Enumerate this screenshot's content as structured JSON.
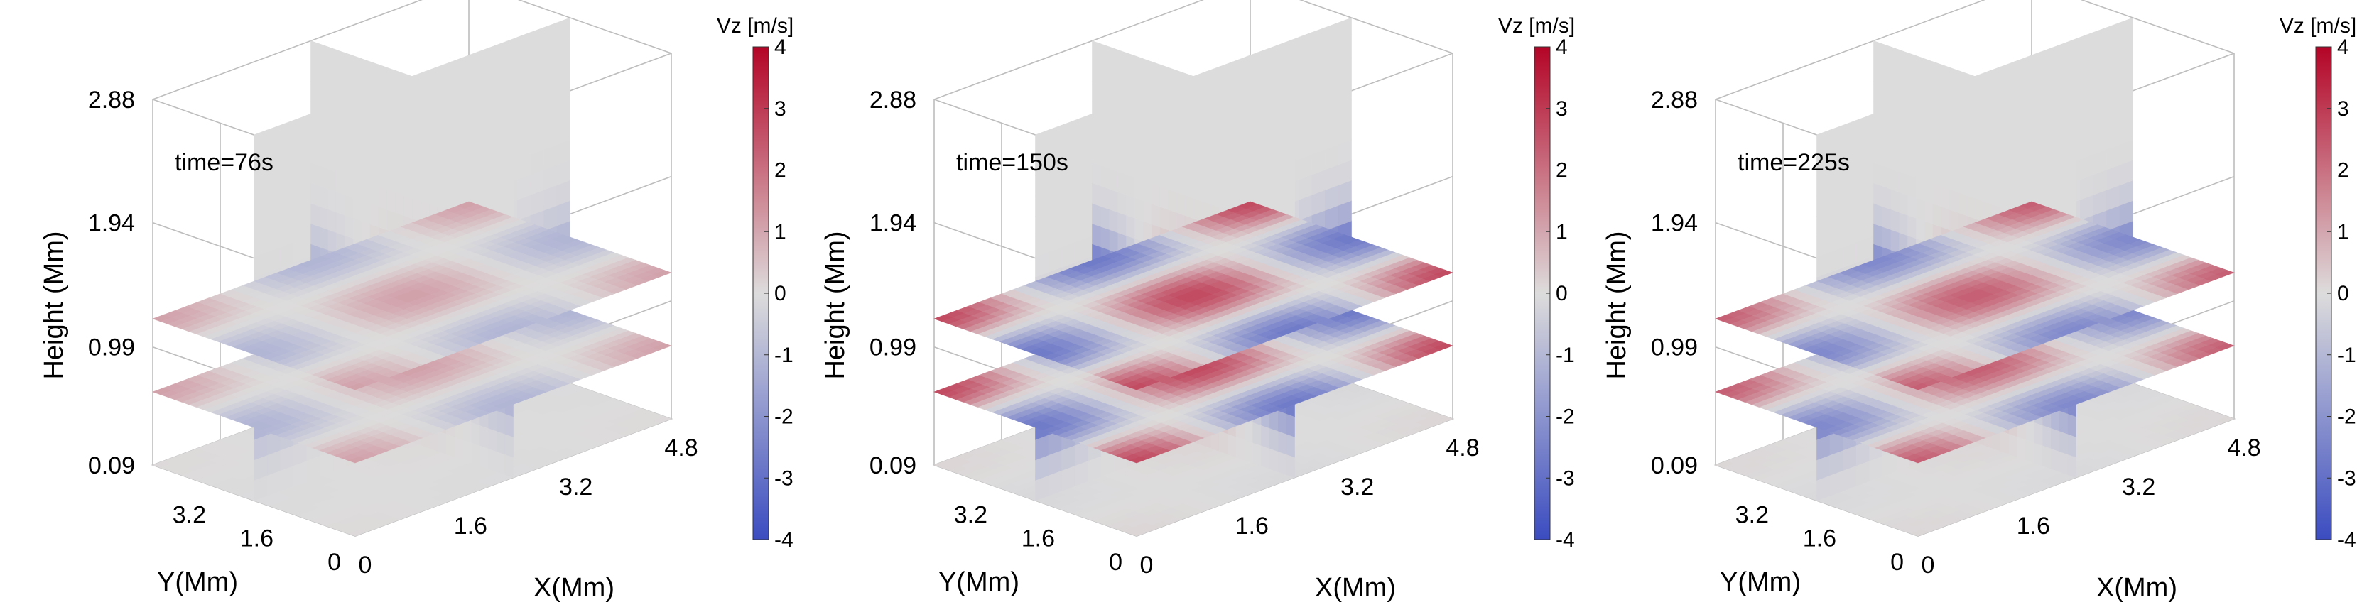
{
  "chart_data": [
    {
      "type": "heatmap",
      "annotation": "time=76s",
      "amplitude": 0.4,
      "xlabel": "X(Mm)",
      "ylabel": "Y(Mm)",
      "zlabel": "Height (Mm)",
      "x_ticks": [
        "0",
        "1.6",
        "3.2",
        "4.8"
      ],
      "y_ticks": [
        "0",
        "1.6",
        "3.2"
      ],
      "z_ticks": [
        "0.09",
        "0.99",
        "1.94",
        "2.88"
      ],
      "xlim": [
        0,
        4.8
      ],
      "ylim": [
        0,
        4.8
      ],
      "zlim": [
        0.09,
        2.88
      ],
      "colorbar": {
        "title": "Vz [m/s]",
        "ticks": [
          "4",
          "3",
          "2",
          "1",
          "0",
          "-1",
          "-2",
          "-3",
          "-4"
        ],
        "clim": [
          -4,
          4
        ],
        "colormap": "coolwarm"
      }
    },
    {
      "type": "heatmap",
      "annotation": "time=150s",
      "amplitude": 1.0,
      "xlabel": "X(Mm)",
      "ylabel": "Y(Mm)",
      "zlabel": "Height (Mm)",
      "x_ticks": [
        "0",
        "1.6",
        "3.2",
        "4.8"
      ],
      "y_ticks": [
        "0",
        "1.6",
        "3.2"
      ],
      "z_ticks": [
        "0.09",
        "0.99",
        "1.94",
        "2.88"
      ],
      "xlim": [
        0,
        4.8
      ],
      "ylim": [
        0,
        4.8
      ],
      "zlim": [
        0.09,
        2.88
      ],
      "colorbar": {
        "title": "Vz [m/s]",
        "ticks": [
          "4",
          "3",
          "2",
          "1",
          "0",
          "-1",
          "-2",
          "-3",
          "-4"
        ],
        "clim": [
          -4,
          4
        ],
        "colormap": "coolwarm"
      }
    },
    {
      "type": "heatmap",
      "annotation": "time=225s",
      "amplitude": 0.85,
      "xlabel": "X(Mm)",
      "ylabel": "Y(Mm)",
      "zlabel": "Height (Mm)",
      "x_ticks": [
        "0",
        "1.6",
        "3.2",
        "4.8"
      ],
      "y_ticks": [
        "0",
        "1.6",
        "3.2"
      ],
      "z_ticks": [
        "0.09",
        "0.99",
        "1.94",
        "2.88"
      ],
      "xlim": [
        0,
        4.8
      ],
      "ylim": [
        0,
        4.8
      ],
      "zlim": [
        0.09,
        2.88
      ],
      "colorbar": {
        "title": "Vz [m/s]",
        "ticks": [
          "4",
          "3",
          "2",
          "1",
          "0",
          "-1",
          "-2",
          "-3",
          "-4"
        ],
        "clim": [
          -4,
          4
        ],
        "colormap": "coolwarm"
      }
    }
  ],
  "colors": {
    "positive": "#b40426",
    "zero": "#dddcdc",
    "negative": "#3b4cc0",
    "axis": "#bdbdbd"
  }
}
